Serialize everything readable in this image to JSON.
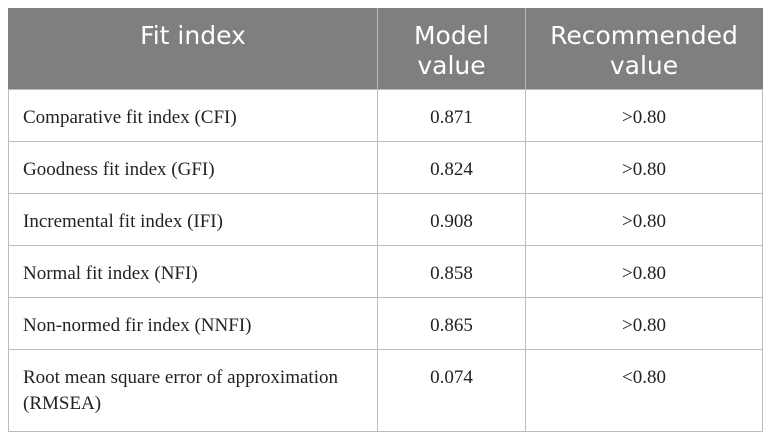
{
  "table": {
    "headers": {
      "fit_index": "Fit index",
      "model_value": "Model value",
      "recommended_value": "Recommended value"
    },
    "rows": [
      {
        "fit_index": "Comparative fit index (CFI)",
        "model_value": "0.871",
        "recommended_value": ">0.80"
      },
      {
        "fit_index": "Goodness fit index (GFI)",
        "model_value": "0.824",
        "recommended_value": ">0.80"
      },
      {
        "fit_index": "Incremental fit index (IFI)",
        "model_value": "0.908",
        "recommended_value": ">0.80"
      },
      {
        "fit_index": "Normal fit index (NFI)",
        "model_value": "0.858",
        "recommended_value": ">0.80"
      },
      {
        "fit_index": "Non-normed fir index (NNFI)",
        "model_value": "0.865",
        "recommended_value": ">0.80"
      },
      {
        "fit_index": "Root mean square error of approximation (RMSEA)",
        "model_value": "0.074",
        "recommended_value": "<0.80"
      }
    ]
  },
  "colors": {
    "header_background": "#7f7f7f",
    "header_text": "#ffffff",
    "grid_line": "#bcbcbc"
  }
}
